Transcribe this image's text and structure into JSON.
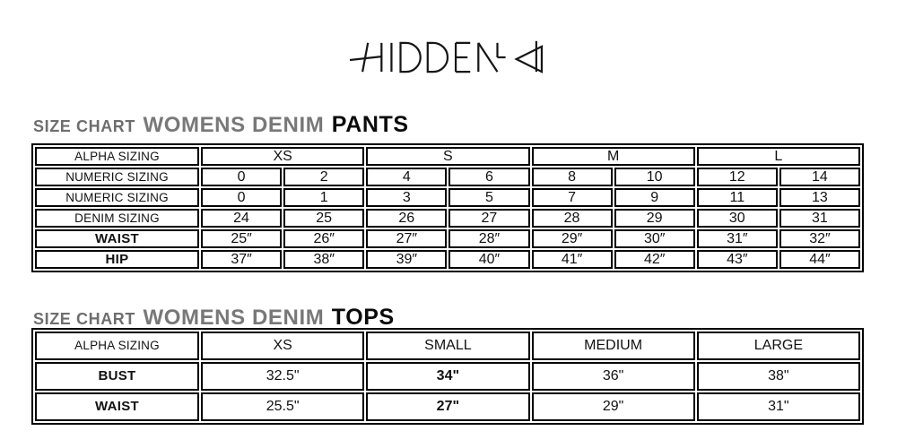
{
  "logo": {
    "text": "HIDDEN"
  },
  "colors": {
    "cell_shade": "#e8e8e8",
    "table_border": "#000000",
    "heading_gray": "#6e6e6e",
    "heading_black": "#0b0b0b"
  },
  "pants_section": {
    "title_prefix": "SIZE CHART",
    "title_mid": "WOMENS DENIM",
    "title_emph": "PANTS"
  },
  "tops_section": {
    "title_prefix": "SIZE CHART",
    "title_mid": "WOMENS DENIM",
    "title_emph": "TOPS"
  },
  "pants_table": {
    "rows": [
      {
        "label": "ALPHA SIZING",
        "label_style": "plain",
        "shaded": true,
        "cells": [
          {
            "text": "XS",
            "span": 2
          },
          {
            "text": "S",
            "span": 2
          },
          {
            "text": "M",
            "span": 2
          },
          {
            "text": "L",
            "span": 2
          }
        ]
      },
      {
        "label": "NUMERIC SIZING",
        "label_style": "plain",
        "shaded": true,
        "cells": [
          {
            "text": "0"
          },
          {
            "text": "2"
          },
          {
            "text": "4"
          },
          {
            "text": "6"
          },
          {
            "text": "8"
          },
          {
            "text": "10"
          },
          {
            "text": "12"
          },
          {
            "text": "14"
          }
        ]
      },
      {
        "label": "NUMERIC SIZING",
        "label_style": "plain",
        "shaded": true,
        "cells": [
          {
            "text": "0"
          },
          {
            "text": "1"
          },
          {
            "text": "3"
          },
          {
            "text": "5"
          },
          {
            "text": "7"
          },
          {
            "text": "9"
          },
          {
            "text": "11"
          },
          {
            "text": "13"
          }
        ]
      },
      {
        "label": "DENIM SIZING",
        "label_style": "plain",
        "shaded": true,
        "cells": [
          {
            "text": "24"
          },
          {
            "text": "25"
          },
          {
            "text": "26"
          },
          {
            "text": "27"
          },
          {
            "text": "28"
          },
          {
            "text": "29"
          },
          {
            "text": "30"
          },
          {
            "text": "31"
          }
        ]
      },
      {
        "label": "WAIST",
        "label_style": "bold-center",
        "shaded": false,
        "cells": [
          {
            "text": "25″"
          },
          {
            "text": "26″"
          },
          {
            "text": "27″"
          },
          {
            "text": "28″"
          },
          {
            "text": "29″"
          },
          {
            "text": "30″"
          },
          {
            "text": "31″"
          },
          {
            "text": "32″"
          }
        ]
      },
      {
        "label": "HIP",
        "label_style": "bold-center",
        "shaded": false,
        "cells": [
          {
            "text": "37″"
          },
          {
            "text": "38″"
          },
          {
            "text": "39″"
          },
          {
            "text": "40″"
          },
          {
            "text": "41″"
          },
          {
            "text": "42″"
          },
          {
            "text": "43″"
          },
          {
            "text": "44″"
          }
        ]
      }
    ]
  },
  "tops_table": {
    "rows": [
      {
        "label": "ALPHA SIZING",
        "label_style": "plain",
        "shaded": true,
        "cells": [
          {
            "text": "XS"
          },
          {
            "text": "SMALL"
          },
          {
            "text": "MEDIUM"
          },
          {
            "text": "LARGE"
          }
        ]
      },
      {
        "label": "BUST",
        "label_style": "bold-center",
        "shaded": false,
        "cells": [
          {
            "text": "32.5\""
          },
          {
            "text": "34\"",
            "bold": true
          },
          {
            "text": "36\""
          },
          {
            "text": "38\""
          }
        ]
      },
      {
        "label": "WAIST",
        "label_style": "bold-center",
        "shaded": false,
        "cells": [
          {
            "text": "25.5\""
          },
          {
            "text": "27\"",
            "bold": true
          },
          {
            "text": "29\""
          },
          {
            "text": "31\""
          }
        ]
      }
    ]
  }
}
